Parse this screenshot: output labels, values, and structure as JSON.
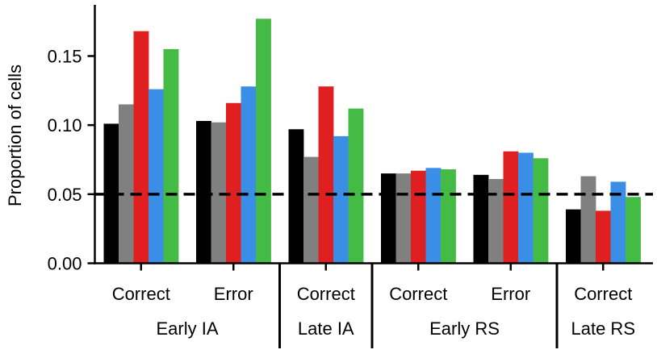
{
  "chart_data": {
    "type": "bar",
    "ylabel": "Proportion of cells",
    "xlabel": "",
    "ylim": [
      0,
      0.185
    ],
    "yticks": [
      0.0,
      0.05,
      0.1,
      0.15
    ],
    "ytick_labels": [
      "0.00",
      "0.05",
      "0.10",
      "0.15"
    ],
    "reference_line": {
      "value": 0.05,
      "style": "dashed",
      "color": "#000000"
    },
    "grid": false,
    "legend": "none",
    "series_colors": [
      "#000000",
      "#808080",
      "#e02020",
      "#3a8ee6",
      "#44bb44"
    ],
    "groups": [
      {
        "label": "Early IA",
        "conditions": [
          {
            "label": "Correct",
            "values": [
              0.101,
              0.115,
              0.168,
              0.126,
              0.155
            ]
          },
          {
            "label": "Error",
            "values": [
              0.103,
              0.102,
              0.116,
              0.128,
              0.177
            ]
          }
        ]
      },
      {
        "label": "Late IA",
        "conditions": [
          {
            "label": "Correct",
            "values": [
              0.097,
              0.077,
              0.128,
              0.092,
              0.112
            ]
          }
        ]
      },
      {
        "label": "Early RS",
        "conditions": [
          {
            "label": "Correct",
            "values": [
              0.065,
              0.065,
              0.067,
              0.069,
              0.068
            ]
          },
          {
            "label": "Error",
            "values": [
              0.064,
              0.061,
              0.081,
              0.08,
              0.076
            ]
          }
        ]
      },
      {
        "label": "Late RS",
        "conditions": [
          {
            "label": "Correct",
            "values": [
              0.039,
              0.063,
              0.038,
              0.059,
              0.048
            ]
          }
        ]
      }
    ]
  }
}
